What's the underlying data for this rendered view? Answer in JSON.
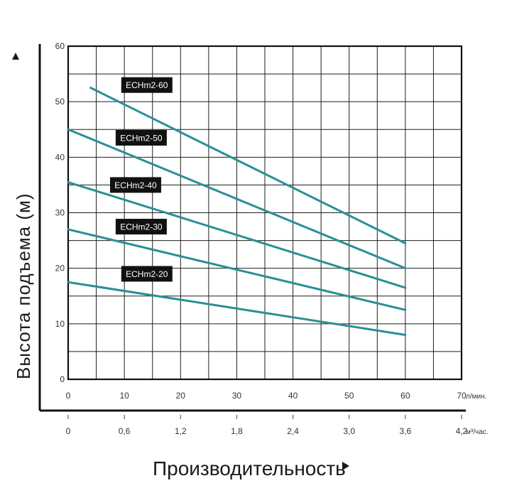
{
  "chart_data": {
    "type": "line",
    "ylabel": "Высота подъема (м)",
    "xlabel": "Производительность",
    "x_unit": "л/мин.",
    "x2_unit": "м³/час.",
    "xlim": [
      0,
      70
    ],
    "ylim": [
      0,
      60
    ],
    "x_ticks": [
      "0",
      "10",
      "20",
      "30",
      "40",
      "50",
      "60",
      "70"
    ],
    "x2_ticks": [
      "0",
      "0,6",
      "1,2",
      "1,8",
      "2,4",
      "3,0",
      "3,6",
      "4,2"
    ],
    "y_ticks": [
      "0",
      "10",
      "20",
      "30",
      "40",
      "50",
      "60"
    ],
    "grid": true,
    "line_color": "#2a8f96",
    "series": [
      {
        "name": "ECHm2-60",
        "x": [
          4,
          60
        ],
        "y": [
          52.5,
          24.5
        ],
        "label_at": [
          14,
          53
        ]
      },
      {
        "name": "ECHm2-50",
        "x": [
          0,
          60
        ],
        "y": [
          45,
          20
        ],
        "label_at": [
          13,
          43.5
        ]
      },
      {
        "name": "ECHm2-40",
        "x": [
          0,
          60
        ],
        "y": [
          35.5,
          16.5
        ],
        "label_at": [
          12,
          35
        ]
      },
      {
        "name": "ECHm2-30",
        "x": [
          0,
          60
        ],
        "y": [
          27,
          12.5
        ],
        "label_at": [
          13,
          27.5
        ]
      },
      {
        "name": "ECHm2-20",
        "x": [
          0,
          60
        ],
        "y": [
          17.5,
          8
        ],
        "label_at": [
          14,
          19
        ]
      }
    ]
  }
}
